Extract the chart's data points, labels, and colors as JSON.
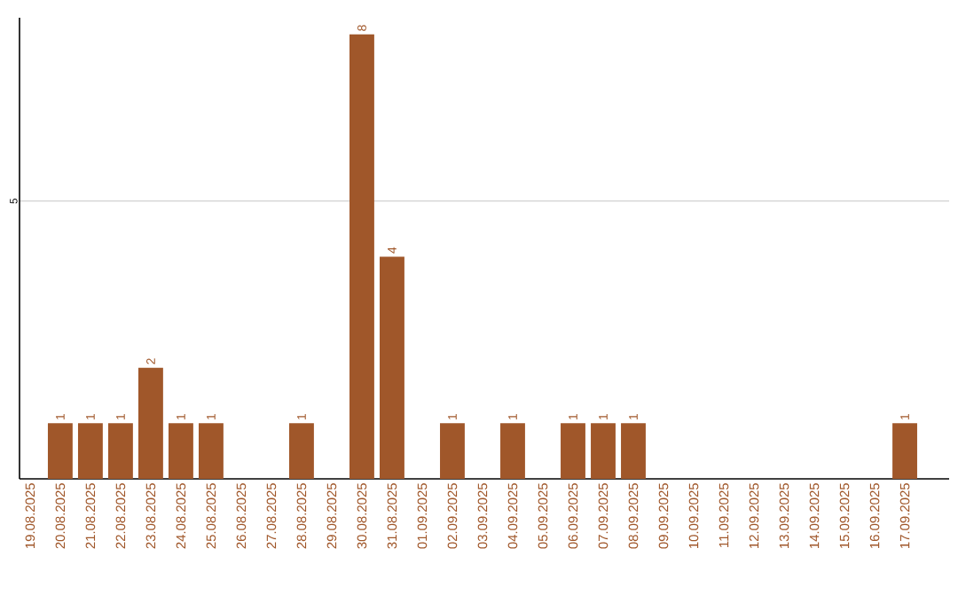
{
  "chart_data": {
    "type": "bar",
    "categories": [
      "19.08.2025",
      "20.08.2025",
      "21.08.2025",
      "22.08.2025",
      "23.08.2025",
      "24.08.2025",
      "25.08.2025",
      "26.08.2025",
      "27.08.2025",
      "28.08.2025",
      "29.08.2025",
      "30.08.2025",
      "31.08.2025",
      "01.09.2025",
      "02.09.2025",
      "03.09.2025",
      "04.09.2025",
      "05.09.2025",
      "06.09.2025",
      "07.09.2025",
      "08.09.2025",
      "09.09.2025",
      "10.09.2025",
      "11.09.2025",
      "12.09.2025",
      "13.09.2025",
      "14.09.2025",
      "15.09.2025",
      "16.09.2025",
      "17.09.2025"
    ],
    "values": [
      null,
      1,
      1,
      1,
      2,
      1,
      1,
      null,
      null,
      1,
      null,
      8,
      4,
      null,
      1,
      null,
      1,
      null,
      1,
      1,
      1,
      null,
      null,
      null,
      null,
      null,
      null,
      null,
      null,
      1
    ],
    "color": "#a0572a",
    "ylim": [
      0,
      8.3
    ],
    "yticks": [
      5
    ],
    "grid": "y",
    "data_labels": true
  }
}
